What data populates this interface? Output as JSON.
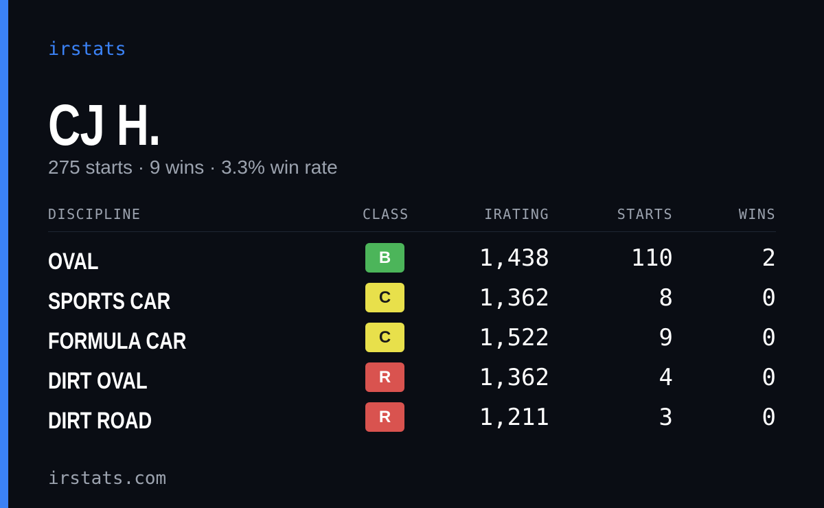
{
  "brand": "irstats",
  "profile": {
    "name": "CJ H.",
    "summary": "275 starts · 9 wins · 3.3% win rate"
  },
  "table": {
    "headers": [
      "DISCIPLINE",
      "CLASS",
      "IRATING",
      "STARTS",
      "WINS"
    ],
    "rows": [
      {
        "discipline": "OVAL",
        "class": "B",
        "class_color": "#4cb55a",
        "class_text_color": "#ffffff",
        "irating": "1,438",
        "starts": "110",
        "wins": "2"
      },
      {
        "discipline": "SPORTS CAR",
        "class": "C",
        "class_color": "#e8e04b",
        "class_text_color": "#1a1a1a",
        "irating": "1,362",
        "starts": "8",
        "wins": "0"
      },
      {
        "discipline": "FORMULA CAR",
        "class": "C",
        "class_color": "#e8e04b",
        "class_text_color": "#1a1a1a",
        "irating": "1,522",
        "starts": "9",
        "wins": "0"
      },
      {
        "discipline": "DIRT OVAL",
        "class": "R",
        "class_color": "#d9534f",
        "class_text_color": "#ffffff",
        "irating": "1,362",
        "starts": "4",
        "wins": "0"
      },
      {
        "discipline": "DIRT ROAD",
        "class": "R",
        "class_color": "#d9534f",
        "class_text_color": "#ffffff",
        "irating": "1,211",
        "starts": "3",
        "wins": "0"
      }
    ]
  },
  "footer": "irstats.com"
}
